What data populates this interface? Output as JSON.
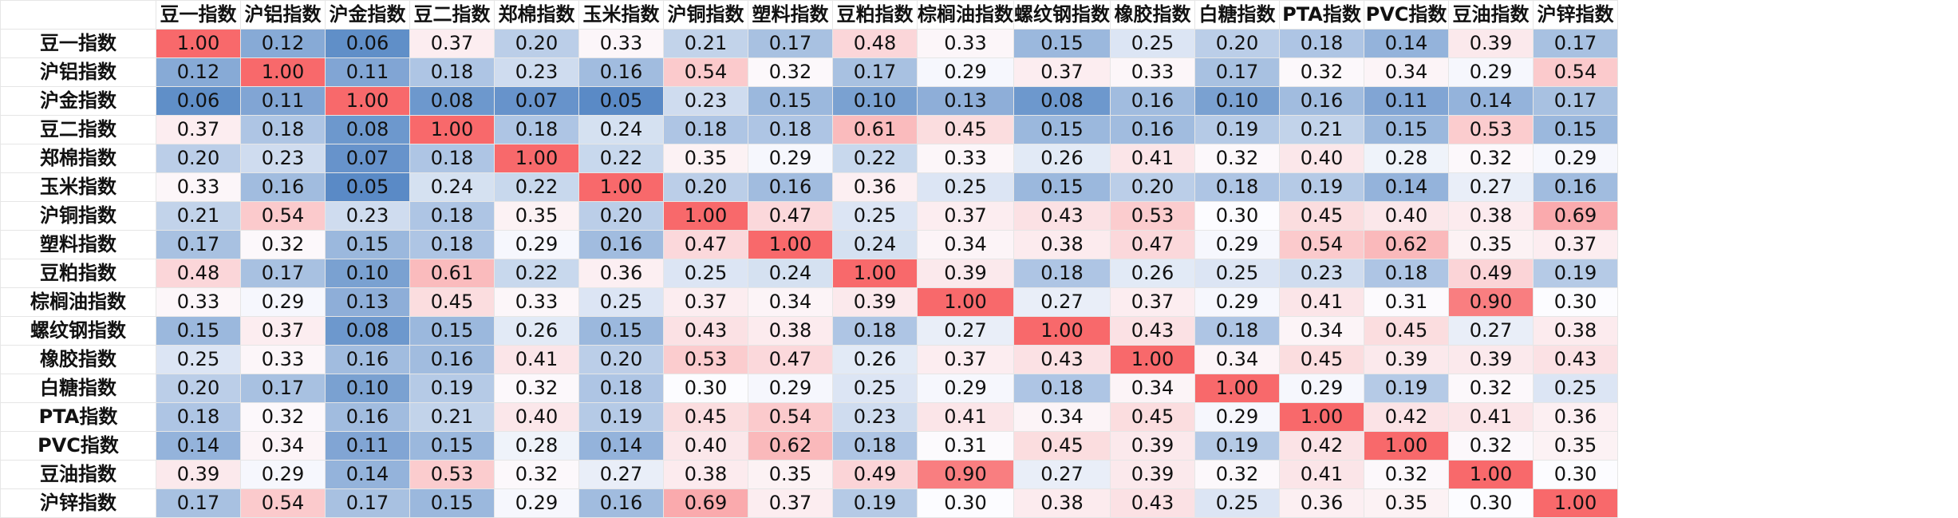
{
  "chart_data": {
    "type": "heatmap",
    "title": "",
    "row_labels": [
      "豆一指数",
      "沪铝指数",
      "沪金指数",
      "豆二指数",
      "郑棉指数",
      "玉米指数",
      "沪铜指数",
      "塑料指数",
      "豆粕指数",
      "棕榈油指数",
      "螺纹钢指数",
      "橡胶指数",
      "白糖指数",
      "PTA指数",
      "PVC指数",
      "豆油指数",
      "沪锌指数"
    ],
    "col_labels": [
      "豆一指数",
      "沪铝指数",
      "沪金指数",
      "豆二指数",
      "郑棉指数",
      "玉米指数",
      "沪铜指数",
      "塑料指数",
      "豆粕指数",
      "棕榈油指数",
      "螺纹钢指数",
      "橡胶指数",
      "白糖指数",
      "PTA指数",
      "PVC指数",
      "豆油指数",
      "沪锌指数"
    ],
    "values": [
      [
        1.0,
        0.12,
        0.06,
        0.37,
        0.2,
        0.33,
        0.21,
        0.17,
        0.48,
        0.33,
        0.15,
        0.25,
        0.2,
        0.18,
        0.14,
        0.39,
        0.17
      ],
      [
        0.12,
        1.0,
        0.11,
        0.18,
        0.23,
        0.16,
        0.54,
        0.32,
        0.17,
        0.29,
        0.37,
        0.33,
        0.17,
        0.32,
        0.34,
        0.29,
        0.54
      ],
      [
        0.06,
        0.11,
        1.0,
        0.08,
        0.07,
        0.05,
        0.23,
        0.15,
        0.1,
        0.13,
        0.08,
        0.16,
        0.1,
        0.16,
        0.11,
        0.14,
        0.17
      ],
      [
        0.37,
        0.18,
        0.08,
        1.0,
        0.18,
        0.24,
        0.18,
        0.18,
        0.61,
        0.45,
        0.15,
        0.16,
        0.19,
        0.21,
        0.15,
        0.53,
        0.15
      ],
      [
        0.2,
        0.23,
        0.07,
        0.18,
        1.0,
        0.22,
        0.35,
        0.29,
        0.22,
        0.33,
        0.26,
        0.41,
        0.32,
        0.4,
        0.28,
        0.32,
        0.29
      ],
      [
        0.33,
        0.16,
        0.05,
        0.24,
        0.22,
        1.0,
        0.2,
        0.16,
        0.36,
        0.25,
        0.15,
        0.2,
        0.18,
        0.19,
        0.14,
        0.27,
        0.16
      ],
      [
        0.21,
        0.54,
        0.23,
        0.18,
        0.35,
        0.2,
        1.0,
        0.47,
        0.25,
        0.37,
        0.43,
        0.53,
        0.3,
        0.45,
        0.4,
        0.38,
        0.69
      ],
      [
        0.17,
        0.32,
        0.15,
        0.18,
        0.29,
        0.16,
        0.47,
        1.0,
        0.24,
        0.34,
        0.38,
        0.47,
        0.29,
        0.54,
        0.62,
        0.35,
        0.37
      ],
      [
        0.48,
        0.17,
        0.1,
        0.61,
        0.22,
        0.36,
        0.25,
        0.24,
        1.0,
        0.39,
        0.18,
        0.26,
        0.25,
        0.23,
        0.18,
        0.49,
        0.19
      ],
      [
        0.33,
        0.29,
        0.13,
        0.45,
        0.33,
        0.25,
        0.37,
        0.34,
        0.39,
        1.0,
        0.27,
        0.37,
        0.29,
        0.41,
        0.31,
        0.9,
        0.3
      ],
      [
        0.15,
        0.37,
        0.08,
        0.15,
        0.26,
        0.15,
        0.43,
        0.38,
        0.18,
        0.27,
        1.0,
        0.43,
        0.18,
        0.34,
        0.45,
        0.27,
        0.38
      ],
      [
        0.25,
        0.33,
        0.16,
        0.16,
        0.41,
        0.2,
        0.53,
        0.47,
        0.26,
        0.37,
        0.43,
        1.0,
        0.34,
        0.45,
        0.39,
        0.39,
        0.43
      ],
      [
        0.2,
        0.17,
        0.1,
        0.19,
        0.32,
        0.18,
        0.3,
        0.29,
        0.25,
        0.29,
        0.18,
        0.34,
        1.0,
        0.29,
        0.19,
        0.32,
        0.25
      ],
      [
        0.18,
        0.32,
        0.16,
        0.21,
        0.4,
        0.19,
        0.45,
        0.54,
        0.23,
        0.41,
        0.34,
        0.45,
        0.29,
        1.0,
        0.42,
        0.41,
        0.36
      ],
      [
        0.14,
        0.34,
        0.11,
        0.15,
        0.28,
        0.14,
        0.4,
        0.62,
        0.18,
        0.31,
        0.45,
        0.39,
        0.19,
        0.42,
        1.0,
        0.32,
        0.35
      ],
      [
        0.39,
        0.29,
        0.14,
        0.53,
        0.32,
        0.27,
        0.38,
        0.35,
        0.49,
        0.9,
        0.27,
        0.39,
        0.32,
        0.41,
        0.32,
        1.0,
        0.3
      ],
      [
        0.17,
        0.54,
        0.17,
        0.15,
        0.29,
        0.16,
        0.69,
        0.37,
        0.19,
        0.3,
        0.38,
        0.43,
        0.25,
        0.36,
        0.35,
        0.3,
        1.0
      ]
    ],
    "number_format": "0.00",
    "color_scale": {
      "low": "#5a8ac6",
      "mid": "#fcfcff",
      "high": "#f8696b",
      "midpoint_value": 0.3
    }
  }
}
